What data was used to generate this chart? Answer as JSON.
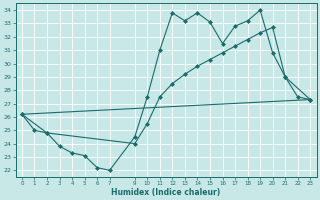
{
  "xlabel": "Humidex (Indice chaleur)",
  "bg_color": "#c8e8e8",
  "line_color": "#1a6b6b",
  "grid_color": "#aacccc",
  "xlim": [
    -0.5,
    23.5
  ],
  "ylim": [
    21.5,
    34.5
  ],
  "yticks": [
    22,
    23,
    24,
    25,
    26,
    27,
    28,
    29,
    30,
    31,
    32,
    33,
    34
  ],
  "xticks": [
    0,
    1,
    2,
    3,
    4,
    5,
    6,
    7,
    9,
    10,
    11,
    12,
    13,
    14,
    15,
    16,
    17,
    18,
    19,
    20,
    21,
    22,
    23
  ],
  "line1_x": [
    0,
    1,
    2,
    3,
    4,
    5,
    6,
    7,
    9,
    10,
    11,
    12,
    13,
    14,
    15,
    16,
    17,
    18,
    19,
    20,
    21,
    22,
    23
  ],
  "line1_y": [
    26.2,
    25.0,
    24.8,
    23.8,
    23.3,
    23.1,
    22.2,
    22.0,
    24.5,
    27.5,
    31.0,
    33.8,
    33.2,
    33.8,
    33.1,
    31.5,
    32.8,
    33.2,
    34.0,
    30.8,
    29.0,
    27.5,
    27.3
  ],
  "line2_x": [
    0,
    2,
    9,
    10,
    11,
    12,
    13,
    14,
    15,
    16,
    17,
    18,
    19,
    20,
    21,
    23
  ],
  "line2_y": [
    26.2,
    24.8,
    24.0,
    25.5,
    27.5,
    28.5,
    29.2,
    29.8,
    30.3,
    30.8,
    31.3,
    31.8,
    32.3,
    32.7,
    29.0,
    27.3
  ],
  "line3_x": [
    0,
    23
  ],
  "line3_y": [
    26.2,
    27.3
  ]
}
